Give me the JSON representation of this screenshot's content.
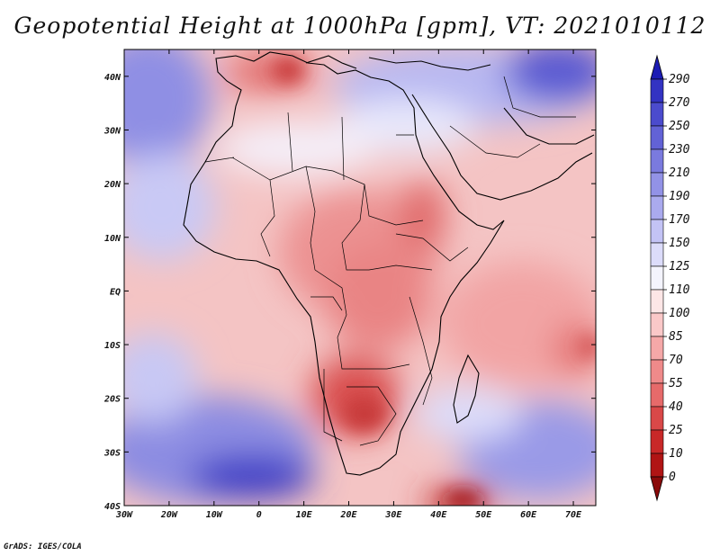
{
  "title": "Geopotential Height at 1000hPa [gpm], VT: 2021010112",
  "credit": "GrADS: IGES/COLA",
  "axes": {
    "lon_labels": [
      "30W",
      "20W",
      "10W",
      "0",
      "10E",
      "20E",
      "30E",
      "40E",
      "50E",
      "60E",
      "70E"
    ],
    "lat_labels": [
      "40N",
      "30N",
      "20N",
      "10N",
      "EQ",
      "10S",
      "20S",
      "30S",
      "40S"
    ],
    "lon_range": [
      -30,
      75
    ],
    "lat_range": [
      -40,
      45
    ]
  },
  "colorbar": {
    "levels": [
      "290",
      "270",
      "250",
      "230",
      "210",
      "190",
      "170",
      "150",
      "125",
      "110",
      "100",
      "85",
      "70",
      "55",
      "40",
      "25",
      "10",
      "0"
    ],
    "colors": [
      "#1c1cb4",
      "#3333c2",
      "#4b4bcd",
      "#6262d6",
      "#7a7ade",
      "#9292e6",
      "#aaaaee",
      "#c3c3f5",
      "#dcdcfa",
      "#f4f4fd",
      "#fde6e6",
      "#fac8c8",
      "#f5a8a8",
      "#ef8a8a",
      "#e66a6a",
      "#d94848",
      "#c82828",
      "#b01414",
      "#8a0a0a"
    ]
  }
}
